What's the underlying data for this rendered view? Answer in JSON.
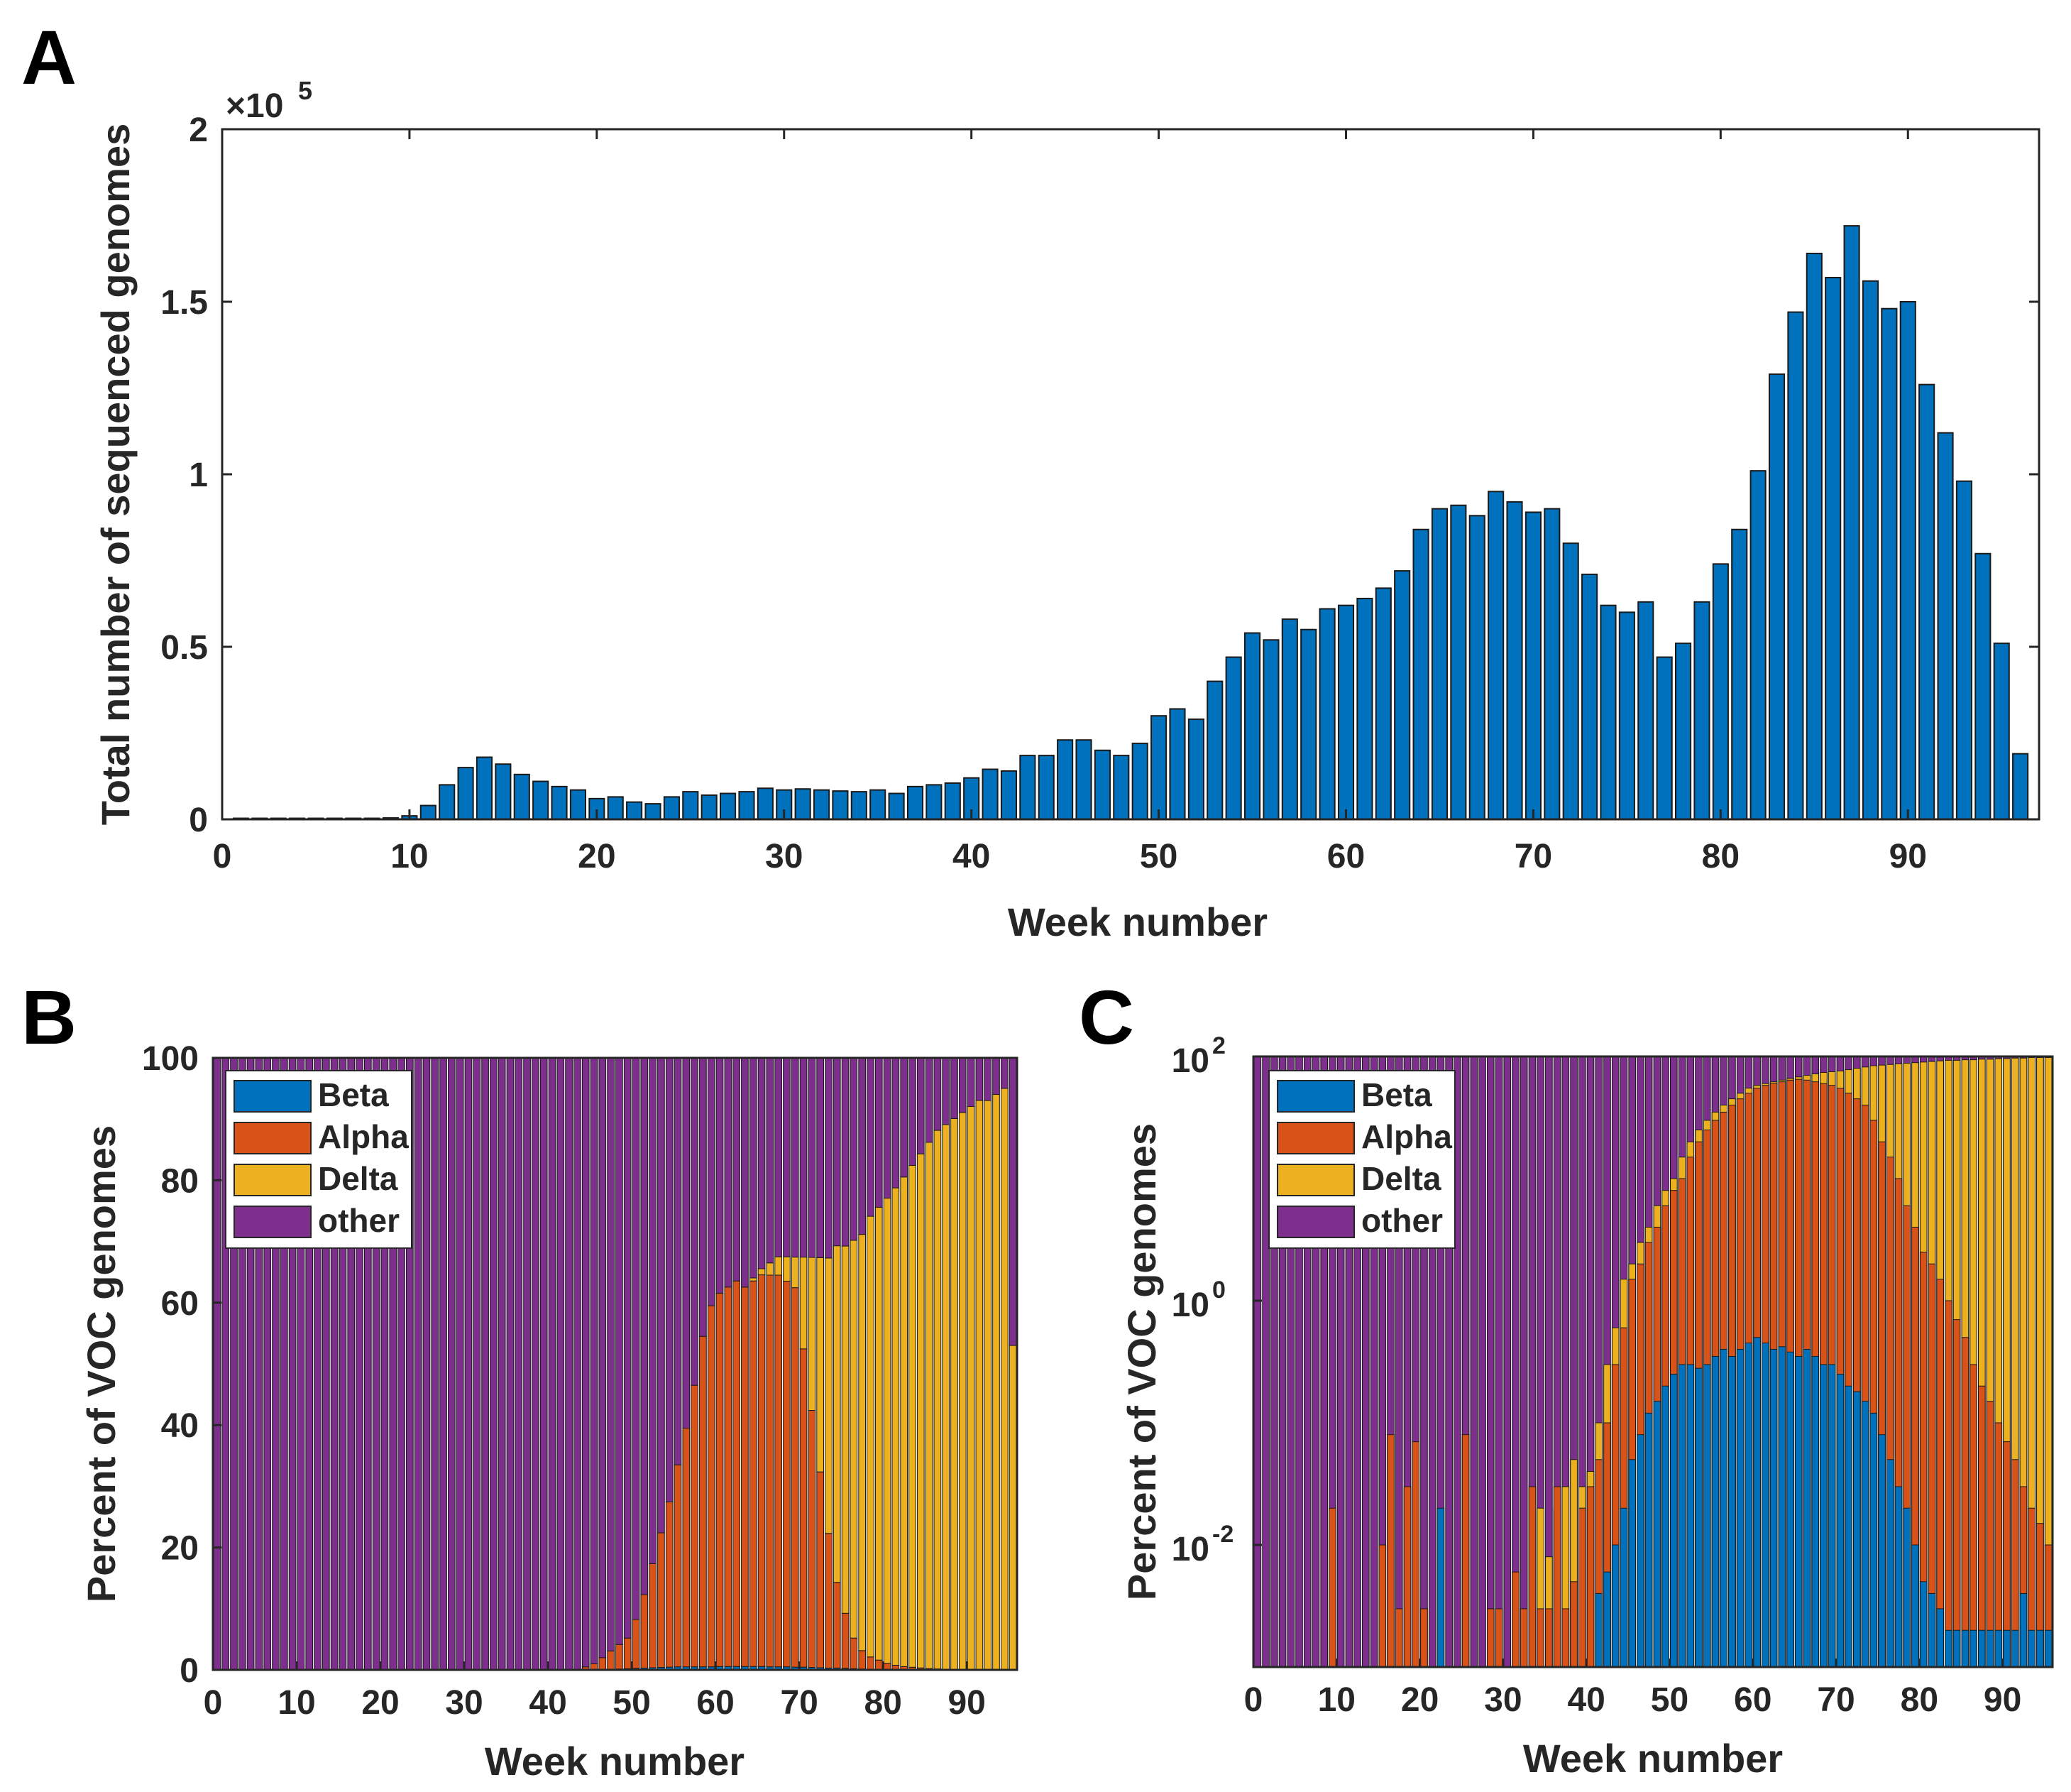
{
  "chart_data": [
    {
      "panel": "A",
      "type": "bar",
      "title": "",
      "xlabel": "Week number",
      "ylabel": "Total number of sequenced genomes",
      "exponent_label": "×10",
      "exponent_power": "5",
      "xlim": [
        0,
        97
      ],
      "ylim": [
        0,
        2
      ],
      "xticks": [
        "0",
        "10",
        "20",
        "30",
        "40",
        "50",
        "60",
        "70",
        "80",
        "90"
      ],
      "yticks": [
        "0",
        "0.5",
        "1",
        "1.5",
        "2"
      ],
      "color": "#0072BD",
      "x": [
        1,
        2,
        3,
        4,
        5,
        6,
        7,
        8,
        9,
        10,
        11,
        12,
        13,
        14,
        15,
        16,
        17,
        18,
        19,
        20,
        21,
        22,
        23,
        24,
        25,
        26,
        27,
        28,
        29,
        30,
        31,
        32,
        33,
        34,
        35,
        36,
        37,
        38,
        39,
        40,
        41,
        42,
        43,
        44,
        45,
        46,
        47,
        48,
        49,
        50,
        51,
        52,
        53,
        54,
        55,
        56,
        57,
        58,
        59,
        60,
        61,
        62,
        63,
        64,
        65,
        66,
        67,
        68,
        69,
        70,
        71,
        72,
        73,
        74,
        75,
        76,
        77,
        78,
        79,
        80,
        81,
        82,
        83,
        84,
        85,
        86,
        87,
        88,
        89,
        90,
        91,
        92,
        93,
        94,
        95,
        96
      ],
      "values": [
        0.003,
        0.003,
        0.003,
        0.003,
        0.003,
        0.003,
        0.003,
        0.003,
        0.004,
        0.01,
        0.04,
        0.1,
        0.15,
        0.18,
        0.16,
        0.13,
        0.11,
        0.095,
        0.085,
        0.06,
        0.065,
        0.05,
        0.045,
        0.065,
        0.08,
        0.07,
        0.075,
        0.08,
        0.09,
        0.085,
        0.088,
        0.085,
        0.082,
        0.08,
        0.085,
        0.075,
        0.095,
        0.1,
        0.105,
        0.12,
        0.145,
        0.14,
        0.185,
        0.185,
        0.23,
        0.23,
        0.2,
        0.185,
        0.22,
        0.3,
        0.32,
        0.29,
        0.4,
        0.47,
        0.54,
        0.52,
        0.58,
        0.55,
        0.61,
        0.62,
        0.64,
        0.67,
        0.72,
        0.84,
        0.9,
        0.91,
        0.88,
        0.95,
        0.92,
        0.89,
        0.9,
        0.8,
        0.71,
        0.62,
        0.6,
        0.63,
        0.47,
        0.51,
        0.63,
        0.74,
        0.84,
        1.01,
        1.29,
        1.47,
        1.64,
        1.57,
        1.72,
        1.56,
        1.48,
        1.5,
        1.26,
        1.12,
        0.98,
        0.77,
        0.51,
        0.19
      ]
    },
    {
      "panel": "B",
      "type": "bar",
      "stacked": true,
      "xlabel": "Week number",
      "ylabel": "Percent of VOC genomes",
      "xlim": [
        0,
        96
      ],
      "ylim": [
        0,
        100
      ],
      "xticks": [
        "0",
        "10",
        "20",
        "30",
        "40",
        "50",
        "60",
        "70",
        "80",
        "90"
      ],
      "yticks": [
        "0",
        "20",
        "40",
        "60",
        "80",
        "100"
      ],
      "legend": [
        "Beta",
        "Alpha",
        "Delta",
        "other"
      ],
      "legend_position": "top-left",
      "series": [
        {
          "name": "Beta",
          "color": "#0072BD",
          "values": [
            0,
            0,
            0,
            0,
            0,
            0,
            0,
            0,
            0,
            0,
            0,
            0,
            0,
            0,
            0,
            0,
            0,
            0,
            0,
            0,
            0,
            0,
            0,
            0,
            0,
            0,
            0,
            0,
            0,
            0,
            0,
            0,
            0,
            0,
            0,
            0,
            0,
            0,
            0,
            0,
            0,
            0,
            0,
            0,
            0,
            0,
            0,
            0.1,
            0.15,
            0.2,
            0.25,
            0.3,
            0.35,
            0.4,
            0.45,
            0.5,
            0.5,
            0.5,
            0.5,
            0.5,
            0.55,
            0.55,
            0.55,
            0.55,
            0.55,
            0.55,
            0.5,
            0.5,
            0.5,
            0.45,
            0.45,
            0.4,
            0.35,
            0.3,
            0.3,
            0.25,
            0.2,
            0.15,
            0.12,
            0.1,
            0.08,
            0.06,
            0.04,
            0.03,
            0.02,
            0.015,
            0.01,
            0.005,
            0.004,
            0.003,
            0.002,
            0.002,
            0.001,
            0.001,
            0.001,
            0
          ]
        },
        {
          "name": "Alpha",
          "color": "#D95319",
          "values": [
            0,
            0,
            0,
            0,
            0,
            0,
            0,
            0,
            0,
            0,
            0,
            0,
            0,
            0,
            0,
            0,
            0,
            0,
            0,
            0,
            0,
            0,
            0,
            0,
            0,
            0,
            0,
            0,
            0,
            0,
            0,
            0,
            0,
            0,
            0,
            0,
            0,
            0,
            0,
            0,
            0,
            0,
            0,
            0,
            0.5,
            1,
            2,
            3,
            4,
            5,
            8,
            12,
            17,
            22,
            27,
            33,
            39,
            46,
            54,
            59,
            61,
            62,
            63,
            62,
            63,
            64,
            64,
            64,
            63,
            62,
            52,
            42,
            32,
            22,
            14,
            9,
            5,
            3,
            2,
            1.5,
            1,
            0.7,
            0.5,
            0.4,
            0.3,
            0.2,
            0.15,
            0.1,
            0.08,
            0.06,
            0.05,
            0.04,
            0.03,
            0.02,
            0.015,
            0.01
          ]
        },
        {
          "name": "Delta",
          "color": "#EDB120",
          "values": [
            0,
            0,
            0,
            0,
            0,
            0,
            0,
            0,
            0,
            0,
            0,
            0,
            0,
            0,
            0,
            0,
            0,
            0,
            0,
            0,
            0,
            0,
            0,
            0,
            0,
            0,
            0,
            0,
            0,
            0,
            0,
            0,
            0,
            0,
            0,
            0,
            0,
            0,
            0,
            0,
            0,
            0,
            0,
            0,
            0,
            0,
            0,
            0,
            0,
            0,
            0,
            0,
            0,
            0,
            0,
            0,
            0,
            0,
            0,
            0,
            0,
            0,
            0,
            0,
            0.5,
            1,
            2,
            3,
            4,
            5,
            15,
            25,
            35,
            45,
            55,
            60,
            65,
            68,
            72,
            74,
            76,
            78,
            80,
            82,
            84,
            86,
            88,
            89,
            90,
            91,
            92,
            93,
            93,
            94,
            95,
            53
          ]
        },
        {
          "name": "other",
          "color": "#7E2F8E",
          "values": [
            100,
            100,
            100,
            100,
            100,
            100,
            100,
            100,
            100,
            100,
            100,
            100,
            100,
            100,
            100,
            100,
            100,
            100,
            100,
            100,
            100,
            100,
            100,
            100,
            100,
            100,
            100,
            100,
            100,
            100,
            100,
            100,
            100,
            100,
            100,
            100,
            100,
            100,
            100,
            100,
            100,
            100,
            100,
            100,
            99.5,
            99,
            98,
            96.9,
            95.85,
            94.8,
            91.75,
            87.7,
            82.65,
            77.6,
            72.55,
            66.5,
            60.5,
            53.5,
            45.5,
            40.5,
            38.45,
            37.45,
            36.45,
            37.45,
            35.95,
            34.45,
            33.5,
            32.5,
            32.5,
            32.55,
            32.55,
            32.6,
            32.65,
            32.7,
            30.7,
            30.75,
            29.8,
            28.85,
            25.88,
            24.4,
            22.92,
            21.24,
            19.46,
            17.57,
            15.68,
            13.785,
            11.84,
            10.895,
            9.916,
            8.937,
            7.948,
            6.958,
            6.969,
            5.979,
            4.984,
            46.99
          ]
        }
      ]
    },
    {
      "panel": "C",
      "type": "bar",
      "stacked": true,
      "yscale": "log",
      "xlabel": "Week number",
      "ylabel": "Percent of VOC genomes",
      "xlim": [
        0,
        96
      ],
      "ylim": [
        0.001,
        100
      ],
      "xticks": [
        "0",
        "10",
        "20",
        "30",
        "40",
        "50",
        "60",
        "70",
        "80",
        "90"
      ],
      "yticks": [
        {
          "base": "10",
          "exp": "-2",
          "value": 0.01
        },
        {
          "base": "10",
          "exp": "0",
          "value": 1
        },
        {
          "base": "10",
          "exp": "2",
          "value": 100
        }
      ],
      "legend": [
        "Beta",
        "Alpha",
        "Delta",
        "other"
      ],
      "legend_position": "top-left",
      "note": "cumulative top of each stacked layer, in percent",
      "series": [
        {
          "name": "Beta",
          "color": "#0072BD",
          "top": [
            0,
            0,
            0,
            0,
            0,
            0,
            0,
            0,
            0,
            0,
            0,
            0,
            0,
            0,
            0,
            0,
            0,
            0,
            0,
            0,
            0,
            0,
            0.02,
            0,
            0,
            0,
            0,
            0,
            0,
            0,
            0,
            0,
            0,
            0,
            0,
            0,
            0,
            0,
            0,
            0,
            0,
            0.004,
            0.006,
            0.01,
            0.02,
            0.05,
            0.08,
            0.12,
            0.15,
            0.2,
            0.25,
            0.3,
            0.3,
            0.28,
            0.3,
            0.35,
            0.4,
            0.35,
            0.4,
            0.45,
            0.5,
            0.45,
            0.4,
            0.42,
            0.38,
            0.35,
            0.4,
            0.35,
            0.3,
            0.3,
            0.25,
            0.2,
            0.18,
            0.15,
            0.12,
            0.08,
            0.05,
            0.03,
            0.02,
            0.01,
            0.005,
            0.004,
            0.003,
            0.002,
            0.002,
            0.002,
            0.002,
            0.002,
            0.002,
            0.002,
            0.002,
            0.002,
            0.004,
            0.002,
            0.002,
            0.002
          ]
        },
        {
          "name": "Alpha",
          "color": "#D95319",
          "top": [
            0,
            0,
            0,
            0,
            0,
            0,
            0,
            0,
            0,
            0.02,
            0,
            0,
            0,
            0,
            0,
            0.01,
            0.08,
            0.003,
            0.03,
            0.07,
            0.003,
            0,
            0,
            0,
            0,
            0.08,
            0,
            0,
            0.003,
            0.003,
            0,
            0.006,
            0.003,
            0.03,
            0.003,
            0.003,
            0.03,
            0.003,
            0.005,
            0.02,
            0.03,
            0.05,
            0.1,
            0.3,
            0.6,
            1.5,
            2,
            3,
            4,
            6,
            8,
            10,
            15,
            20,
            25,
            30,
            35,
            40,
            45,
            50,
            55,
            58,
            60,
            62,
            64,
            65,
            64,
            62,
            60,
            58,
            55,
            50,
            45,
            40,
            30,
            20,
            15,
            10,
            6,
            4,
            2.5,
            2,
            1.5,
            1,
            0.7,
            0.5,
            0.3,
            0.2,
            0.15,
            0.1,
            0.07,
            0.05,
            0.03,
            0.02,
            0.015,
            0.01
          ]
        },
        {
          "name": "Delta",
          "color": "#EDB120",
          "top": [
            0,
            0,
            0,
            0,
            0,
            0,
            0,
            0,
            0,
            0,
            0,
            0,
            0,
            0,
            0,
            0,
            0,
            0,
            0,
            0,
            0,
            0,
            0,
            0,
            0,
            0,
            0,
            0,
            0,
            0,
            0,
            0,
            0,
            0,
            0.02,
            0.008,
            0.02,
            0.03,
            0.05,
            0.03,
            0.04,
            0.1,
            0.3,
            0.6,
            1.5,
            2,
            3,
            4,
            6,
            8,
            10,
            15,
            20,
            25,
            30,
            35,
            40,
            45,
            50,
            55,
            58,
            60,
            62,
            64,
            66,
            68,
            70,
            72,
            74,
            75,
            76,
            78,
            80,
            82,
            84,
            85,
            86,
            87,
            88,
            89,
            90,
            91,
            92,
            93,
            93,
            94,
            94,
            95,
            95,
            96,
            96,
            97,
            97,
            98,
            98,
            98
          ]
        }
      ]
    }
  ]
}
